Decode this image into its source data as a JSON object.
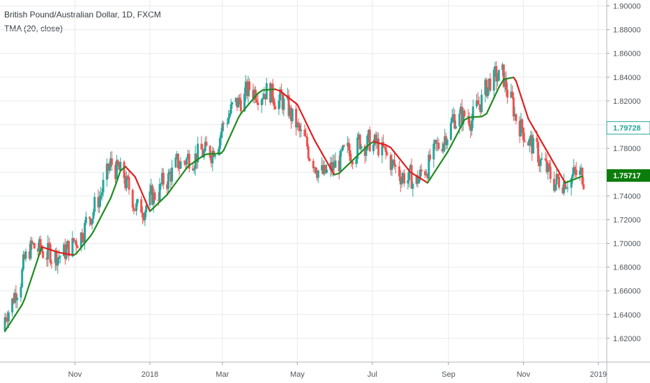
{
  "header": {
    "symbol_title": "British Pound/Australian Dollar, 1D, FXCM",
    "indicator_title": "TMA (20, close)"
  },
  "colors": {
    "up": "#26a69a",
    "down": "#ef5350",
    "tma_up": "#1e8a1e",
    "tma_down": "#e01e1e",
    "grid": "#e8eaed",
    "axis_text": "#50555a",
    "last_price_bg": "#ffffff",
    "tma_badge_bg": "#0b7d0b"
  },
  "chart_data": {
    "type": "candlestick",
    "title": "British Pound/Australian Dollar, 1D, FXCM",
    "ylim": [
      1.6,
      1.905
    ],
    "yticks": [
      "1.90000",
      "1.88000",
      "1.86000",
      "1.84000",
      "1.82000",
      "1.80000",
      "1.78000",
      "1.76000",
      "1.74000",
      "1.72000",
      "1.70000",
      "1.68000",
      "1.66000",
      "1.64000",
      "1.62000"
    ],
    "xticks": [
      "Nov",
      "2018",
      "Mar",
      "May",
      "Jul",
      "Sep",
      "Nov",
      "2019"
    ],
    "grid": true,
    "last_price": "1.79728",
    "tma_last": "1.75717",
    "series": [
      {
        "name": "TMA (20, close)",
        "x": [
          "2017-09-05",
          "2017-09-20",
          "2017-10-05",
          "2017-10-20",
          "2017-11-01",
          "2017-11-15",
          "2017-12-01",
          "2017-12-10",
          "2017-12-20",
          "2018-01-01",
          "2018-01-15",
          "2018-02-01",
          "2018-02-15",
          "2018-03-01",
          "2018-03-15",
          "2018-04-01",
          "2018-04-15",
          "2018-05-01",
          "2018-05-15",
          "2018-06-01",
          "2018-06-15",
          "2018-07-01",
          "2018-07-15",
          "2018-08-01",
          "2018-08-15",
          "2018-09-01",
          "2018-09-15",
          "2018-10-01",
          "2018-10-15",
          "2018-10-25",
          "2018-11-05",
          "2018-11-20",
          "2018-12-05",
          "2018-12-20"
        ],
        "values": [
          1.626,
          1.65,
          1.697,
          1.692,
          1.69,
          1.708,
          1.74,
          1.767,
          1.756,
          1.727,
          1.741,
          1.765,
          1.775,
          1.776,
          1.808,
          1.829,
          1.83,
          1.817,
          1.787,
          1.756,
          1.77,
          1.786,
          1.782,
          1.76,
          1.751,
          1.778,
          1.806,
          1.807,
          1.838,
          1.84,
          1.805,
          1.778,
          1.751,
          1.757
        ]
      }
    ]
  }
}
